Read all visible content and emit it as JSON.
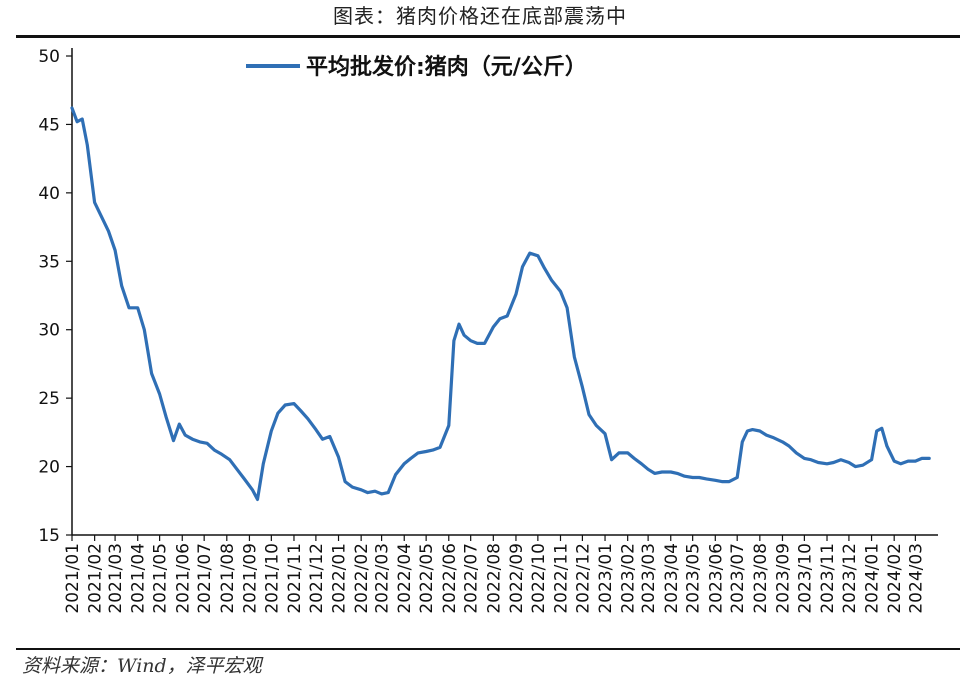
{
  "figure_title": "图表：猪肉价格还在底部震荡中",
  "source_note": "资料来源：Wind，泽平宏观",
  "colors": {
    "line": "#2f6fb5",
    "axis": "#111111"
  },
  "chart_data": {
    "type": "line",
    "series": [
      {
        "name": "平均批发价:猪肉（元/公斤）",
        "x": [
          "2021-01-01",
          "2021-01-08",
          "2021-01-15",
          "2021-01-22",
          "2021-02-01",
          "2021-02-10",
          "2021-02-20",
          "2021-03-01",
          "2021-03-10",
          "2021-03-20",
          "2021-04-01",
          "2021-04-10",
          "2021-04-20",
          "2021-05-01",
          "2021-05-10",
          "2021-05-20",
          "2021-05-28",
          "2021-06-05",
          "2021-06-15",
          "2021-06-25",
          "2021-07-05",
          "2021-07-15",
          "2021-07-25",
          "2021-08-05",
          "2021-08-15",
          "2021-08-25",
          "2021-09-05",
          "2021-09-12",
          "2021-09-20",
          "2021-10-01",
          "2021-10-10",
          "2021-10-20",
          "2021-11-01",
          "2021-11-10",
          "2021-11-20",
          "2021-12-01",
          "2021-12-10",
          "2021-12-20",
          "2022-01-01",
          "2022-01-10",
          "2022-01-20",
          "2022-02-01",
          "2022-02-10",
          "2022-02-20",
          "2022-03-01",
          "2022-03-10",
          "2022-03-20",
          "2022-04-01",
          "2022-04-10",
          "2022-04-20",
          "2022-05-01",
          "2022-05-10",
          "2022-05-20",
          "2022-06-01",
          "2022-06-08",
          "2022-06-15",
          "2022-06-22",
          "2022-07-01",
          "2022-07-10",
          "2022-07-20",
          "2022-08-01",
          "2022-08-10",
          "2022-08-20",
          "2022-09-01",
          "2022-09-10",
          "2022-09-20",
          "2022-10-01",
          "2022-10-10",
          "2022-10-20",
          "2022-11-01",
          "2022-11-10",
          "2022-11-20",
          "2022-12-01",
          "2022-12-10",
          "2022-12-20",
          "2023-01-01",
          "2023-01-10",
          "2023-01-20",
          "2023-02-01",
          "2023-02-10",
          "2023-02-20",
          "2023-03-01",
          "2023-03-10",
          "2023-03-20",
          "2023-04-01",
          "2023-04-10",
          "2023-04-20",
          "2023-05-01",
          "2023-05-10",
          "2023-05-20",
          "2023-06-01",
          "2023-06-10",
          "2023-06-20",
          "2023-07-01",
          "2023-07-08",
          "2023-07-15",
          "2023-07-22",
          "2023-08-01",
          "2023-08-10",
          "2023-08-20",
          "2023-09-01",
          "2023-09-10",
          "2023-09-20",
          "2023-10-01",
          "2023-10-10",
          "2023-10-20",
          "2023-11-01",
          "2023-11-10",
          "2023-11-20",
          "2023-12-01",
          "2023-12-10",
          "2023-12-20",
          "2024-01-01",
          "2024-01-08",
          "2024-01-15",
          "2024-01-22",
          "2024-02-01",
          "2024-02-10",
          "2024-02-20",
          "2024-03-01",
          "2024-03-10",
          "2024-03-20"
        ],
        "values": [
          46.2,
          45.2,
          45.4,
          43.5,
          39.3,
          38.3,
          37.2,
          35.8,
          33.2,
          31.6,
          31.6,
          30.0,
          26.8,
          25.3,
          23.6,
          21.9,
          23.1,
          22.3,
          22.0,
          21.8,
          21.7,
          21.2,
          20.9,
          20.5,
          19.8,
          19.1,
          18.3,
          17.6,
          20.2,
          22.6,
          23.9,
          24.5,
          24.6,
          24.1,
          23.5,
          22.7,
          22.0,
          22.2,
          20.7,
          18.9,
          18.5,
          18.3,
          18.1,
          18.2,
          18.0,
          18.1,
          19.4,
          20.2,
          20.6,
          21.0,
          21.1,
          21.2,
          21.4,
          23.0,
          29.2,
          30.4,
          29.6,
          29.2,
          29.0,
          29.0,
          30.2,
          30.8,
          31.0,
          32.6,
          34.6,
          35.6,
          35.4,
          34.5,
          33.6,
          32.8,
          31.6,
          28.0,
          25.8,
          23.8,
          23.0,
          22.4,
          20.5,
          21.0,
          21.0,
          20.6,
          20.2,
          19.8,
          19.5,
          19.6,
          19.6,
          19.5,
          19.3,
          19.2,
          19.2,
          19.1,
          19.0,
          18.9,
          18.9,
          19.2,
          21.8,
          22.6,
          22.7,
          22.6,
          22.3,
          22.1,
          21.8,
          21.5,
          21.0,
          20.6,
          20.5,
          20.3,
          20.2,
          20.3,
          20.5,
          20.3,
          20.0,
          20.1,
          20.5,
          22.6,
          22.8,
          21.5,
          20.4,
          20.2,
          20.4,
          20.4,
          20.6,
          20.6
        ]
      }
    ],
    "x_tick_labels": [
      "2021/01",
      "2021/02",
      "2021/03",
      "2021/04",
      "2021/05",
      "2021/06",
      "2021/07",
      "2021/08",
      "2021/09",
      "2021/10",
      "2021/11",
      "2021/12",
      "2022/01",
      "2022/02",
      "2022/03",
      "2022/04",
      "2022/05",
      "2022/06",
      "2022/07",
      "2022/08",
      "2022/09",
      "2022/10",
      "2022/11",
      "2022/12",
      "2023/01",
      "2023/02",
      "2023/03",
      "2023/04",
      "2023/05",
      "2023/06",
      "2023/07",
      "2023/08",
      "2023/09",
      "2023/10",
      "2023/11",
      "2023/12",
      "2024/01",
      "2024/02",
      "2024/03"
    ],
    "x_range": [
      "2021-01-01",
      "2024-04-01"
    ],
    "ylim": [
      15,
      50
    ],
    "yticks": [
      15,
      20,
      25,
      30,
      35,
      40,
      45,
      50
    ],
    "grid": false,
    "legend_position": "top-center"
  }
}
